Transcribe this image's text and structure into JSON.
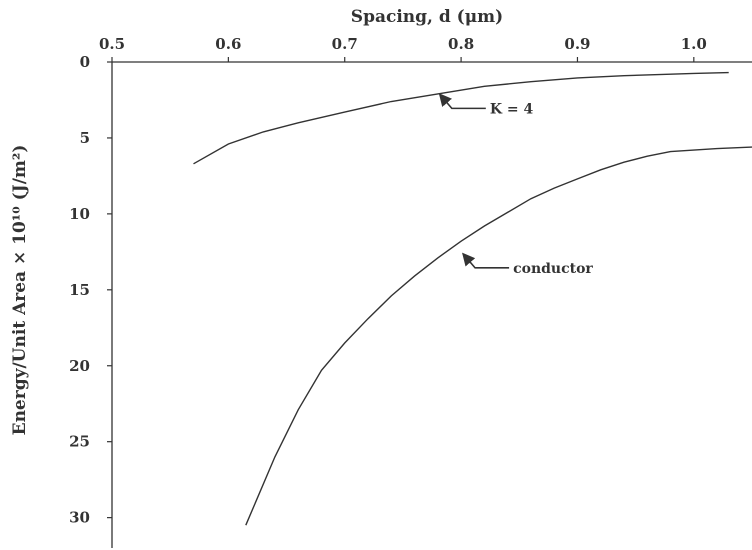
{
  "chart_data": {
    "type": "line",
    "title": "",
    "xlabel": "Spacing, d (μm)",
    "ylabel": "Energy/Unit Area × 10¹⁰ (J/m²)",
    "x_axis_position": "top",
    "y_axis_inverted": true,
    "grid": false,
    "xlim": [
      0.5,
      1.05
    ],
    "ylim": [
      0,
      32
    ],
    "x_ticks": [
      "0.5",
      "0.6",
      "0.7",
      "0.8",
      "0.9",
      "1.0"
    ],
    "y_ticks": [
      "0",
      "5",
      "10",
      "15",
      "20",
      "25",
      "30"
    ],
    "series": [
      {
        "name": "K = 4",
        "color": "#333333",
        "x": [
          0.57,
          0.6,
          0.63,
          0.66,
          0.7,
          0.74,
          0.78,
          0.82,
          0.86,
          0.9,
          0.94,
          0.98,
          1.0,
          1.03
        ],
        "y": [
          6.7,
          5.4,
          4.6,
          4.0,
          3.3,
          2.6,
          2.1,
          1.6,
          1.3,
          1.05,
          0.9,
          0.8,
          0.75,
          0.7
        ]
      },
      {
        "name": "conductor",
        "color": "#333333",
        "x": [
          0.615,
          0.64,
          0.66,
          0.68,
          0.7,
          0.72,
          0.74,
          0.76,
          0.78,
          0.8,
          0.82,
          0.84,
          0.86,
          0.88,
          0.9,
          0.92,
          0.94,
          0.96,
          0.98,
          1.0,
          1.02,
          1.05
        ],
        "y": [
          30.5,
          26.0,
          22.9,
          20.3,
          18.5,
          16.9,
          15.4,
          14.1,
          12.9,
          11.8,
          10.8,
          9.9,
          9.0,
          8.3,
          7.7,
          7.1,
          6.6,
          6.2,
          5.9,
          5.8,
          5.7,
          5.6
        ]
      }
    ],
    "annotations": [
      {
        "text": "K = 4",
        "x": 0.78,
        "y": 2.0,
        "series": "K = 4"
      },
      {
        "text": "conductor",
        "x": 0.8,
        "y": 12.5,
        "series": "conductor"
      }
    ]
  }
}
